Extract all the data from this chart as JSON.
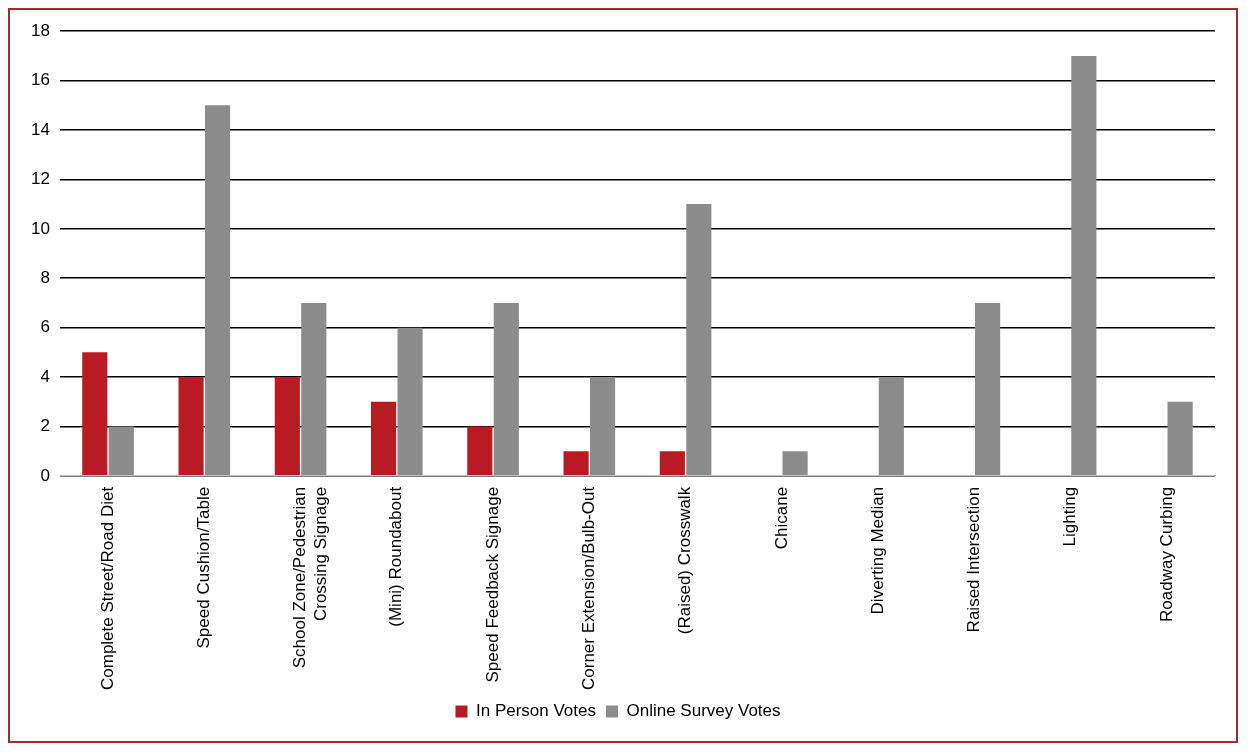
{
  "chart_data": {
    "type": "bar",
    "categories": [
      "Complete Street/Road Diet",
      "Speed Cushion/Table",
      "School Zone/Pedestrian Crossing Signage",
      "(Mini) Roundabout",
      "Speed Feedback Signage",
      "Corner Extension/Bulb-Out",
      "(Raised) Crosswalk",
      "Chicane",
      "Diverting Median",
      "Raised Intersection",
      "Lighting",
      "Roadway Curbing"
    ],
    "series": [
      {
        "name": "In Person Votes",
        "color": "#b81c22",
        "values": [
          5,
          4,
          4,
          3,
          2,
          1,
          1,
          0,
          0,
          0,
          0,
          0
        ]
      },
      {
        "name": "Online Survey Votes",
        "color": "#8c8c8c",
        "values": [
          2,
          15,
          7,
          6,
          7,
          4,
          11,
          1,
          4,
          7,
          17,
          3
        ]
      }
    ],
    "ylim": [
      0,
      18
    ],
    "yticks": [
      0,
      2,
      4,
      6,
      8,
      10,
      12,
      14,
      16,
      18
    ],
    "grid": "y",
    "legend": "bottom"
  }
}
